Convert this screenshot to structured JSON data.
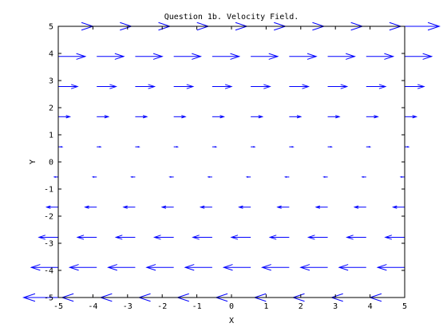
{
  "chart_data": {
    "type": "quiver",
    "title": "Question 1b. Velocity Field.",
    "xlabel": "X",
    "ylabel": "Y",
    "xlim": [
      -5,
      5
    ],
    "ylim": [
      -5,
      5
    ],
    "xticks": [
      "-5",
      "-4",
      "-3",
      "-2",
      "-1",
      "0",
      "1",
      "2",
      "3",
      "4",
      "5"
    ],
    "yticks": [
      "-5",
      "-4",
      "-3",
      "-2",
      "-1",
      "0",
      "1",
      "2",
      "3",
      "4",
      "5"
    ],
    "grid": false,
    "arrow_color": "#0000ff",
    "grid_x": [
      -5,
      -3.889,
      -2.778,
      -1.667,
      -0.556,
      0.556,
      1.667,
      2.778,
      3.889,
      5
    ],
    "grid_y": [
      -5,
      -3.889,
      -2.778,
      -1.667,
      -0.556,
      0.556,
      1.667,
      2.778,
      3.889,
      5
    ],
    "field": "u = y, v = 0",
    "u_by_row": [
      -5,
      -3.889,
      -2.778,
      -1.667,
      -0.556,
      0.556,
      1.667,
      2.778,
      3.889,
      5
    ],
    "v": 0
  }
}
